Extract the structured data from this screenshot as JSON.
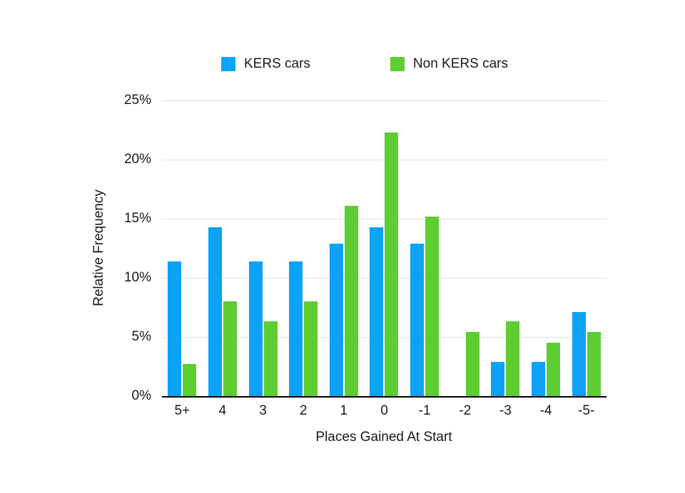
{
  "chart_data": {
    "type": "bar",
    "title": "",
    "categories": [
      "5+",
      "4",
      "3",
      "2",
      "1",
      "0",
      "-1",
      "-2",
      "-3",
      "-4",
      "-5-"
    ],
    "series": [
      {
        "name": "KERS cars",
        "color": "#0ca2f7",
        "values": [
          11.4,
          14.3,
          11.4,
          11.4,
          12.9,
          14.3,
          12.9,
          0,
          2.9,
          2.9,
          7.1
        ]
      },
      {
        "name": "Non KERS cars",
        "color": "#5dce32",
        "values": [
          2.7,
          8.0,
          6.3,
          8.0,
          16.1,
          22.3,
          15.2,
          5.4,
          6.3,
          4.5,
          5.4
        ]
      }
    ],
    "xlabel": "Places Gained At Start",
    "ylabel": "Relative Frequency",
    "ylim": [
      0,
      25
    ],
    "y_ticks": [
      "0%",
      "5%",
      "10%",
      "15%",
      "20%",
      "25%"
    ],
    "y_tick_values": [
      0,
      5,
      10,
      15,
      20,
      25
    ],
    "grid": true,
    "legend_position": "top",
    "gridline_color": "#e2e2e2",
    "axis_line_color": "#000000"
  }
}
